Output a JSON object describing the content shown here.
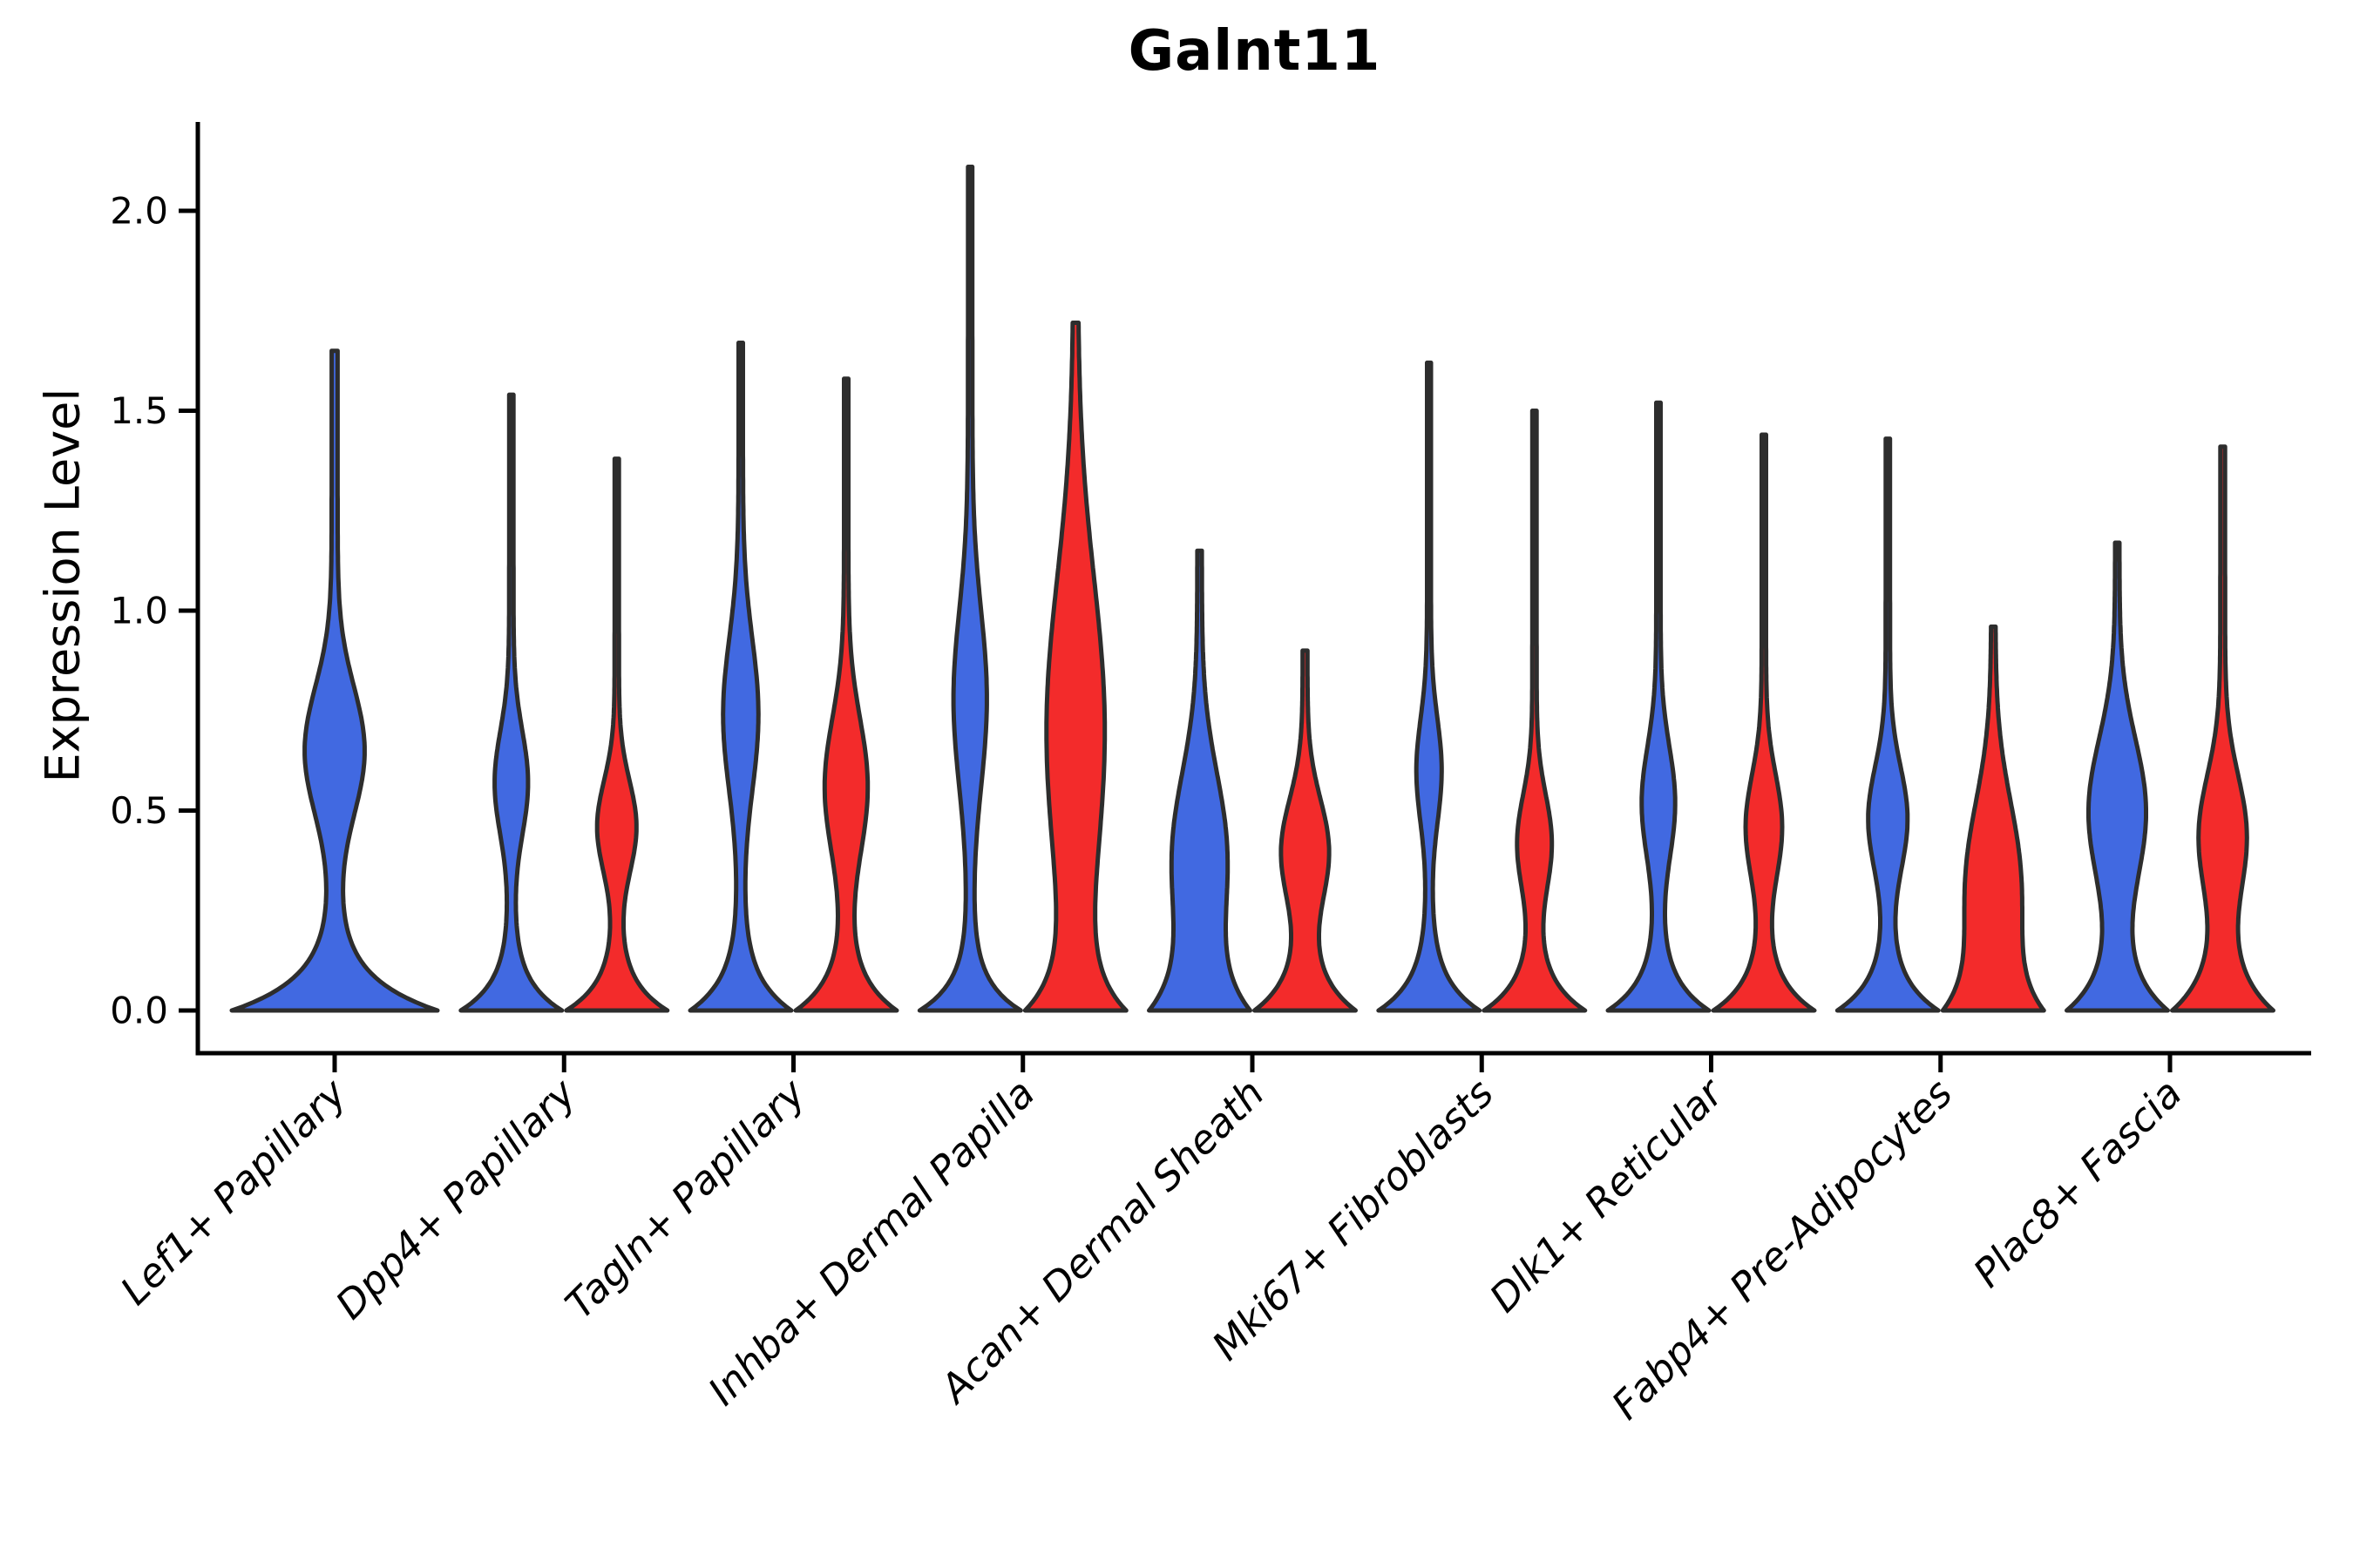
{
  "title": "Galnt11",
  "ylabel": "Expression Level",
  "chart_data": {
    "type": "violin",
    "title": "Galnt11",
    "xlabel": "",
    "ylabel": "Expression Level",
    "yticks": [
      0.0,
      0.5,
      1.0,
      1.5,
      2.0
    ],
    "ytick_labels": [
      "0.0",
      "0.5",
      "1.0",
      "1.5",
      "2.0"
    ],
    "ylim_display": [
      -0.11,
      2.22
    ],
    "grid": false,
    "legend": "none",
    "background": "#ffffff",
    "edge_color": "#2d2d2d",
    "series": [
      {
        "name": "condition-blue",
        "color": "#4169e1"
      },
      {
        "name": "condition-red",
        "color": "#f32b2b"
      }
    ],
    "categories": [
      "Lef1+ Papillary",
      "Dpp4+ Papillary",
      "Tagln+ Papillary",
      "Inhba+ Dermal Papilla",
      "Acan+ Dermal Sheath",
      "Mki67+ Fibroblasts",
      "Dlk1+ Reticular",
      "Fabp4+ Pre-Adipocytes",
      "Plac8+ Fascia"
    ],
    "violins": [
      {
        "category": "Lef1+ Papillary",
        "cat_index": 0,
        "series": "condition-blue",
        "placement": "center",
        "max_expression": 1.65,
        "zero_mass": {
          "lambda": 0.085
        },
        "bulge": {
          "mu": 0.65,
          "amp": 0.27,
          "sigma": 0.16
        },
        "stem_w": 0.03
      },
      {
        "category": "Dpp4+ Papillary",
        "cat_index": 1,
        "series": "condition-blue",
        "placement": "left",
        "max_expression": 1.54,
        "zero_mass": {
          "lambda": 0.075
        },
        "bulge": {
          "mu": 0.57,
          "amp": 0.3,
          "sigma": 0.13
        },
        "stem_w": 0.045
      },
      {
        "category": "Dpp4+ Papillary",
        "cat_index": 1,
        "series": "condition-red",
        "placement": "right",
        "max_expression": 1.38,
        "zero_mass": {
          "lambda": 0.075
        },
        "bulge": {
          "mu": 0.46,
          "amp": 0.36,
          "sigma": 0.115
        },
        "stem_w": 0.045
      },
      {
        "category": "Tagln+ Papillary",
        "cat_index": 2,
        "series": "condition-blue",
        "placement": "left",
        "max_expression": 1.67,
        "zero_mass": {
          "lambda": 0.085
        },
        "bulge": {
          "mu": 0.74,
          "amp": 0.32,
          "sigma": 0.19
        },
        "stem_w": 0.045
      },
      {
        "category": "Tagln+ Papillary",
        "cat_index": 2,
        "series": "condition-red",
        "placement": "right",
        "max_expression": 1.58,
        "zero_mass": {
          "lambda": 0.085
        },
        "bulge": {
          "mu": 0.56,
          "amp": 0.4,
          "sigma": 0.17
        },
        "stem_w": 0.045
      },
      {
        "category": "Inhba+ Dermal Papilla",
        "cat_index": 3,
        "series": "condition-blue",
        "placement": "left",
        "max_expression": 2.11,
        "zero_mass": {
          "lambda": 0.075
        },
        "bulge": {
          "mu": 0.78,
          "amp": 0.3,
          "sigma": 0.22
        },
        "stem_w": 0.045
      },
      {
        "category": "Inhba+ Dermal Papilla",
        "cat_index": 3,
        "series": "condition-red",
        "placement": "right",
        "max_expression": 1.72,
        "zero_mass": {
          "lambda": 0.105
        },
        "bulge": {
          "mu": 0.7,
          "amp": 0.62,
          "sigma": 0.38
        },
        "stem_w": 0.05
      },
      {
        "category": "Acan+ Dermal Sheath",
        "cat_index": 4,
        "series": "condition-blue",
        "placement": "left",
        "max_expression": 1.15,
        "zero_mass": {
          "lambda": 0.13
        },
        "bulge": {
          "mu": 0.4,
          "amp": 0.52,
          "sigma": 0.2
        },
        "stem_w": 0.05
      },
      {
        "category": "Acan+ Dermal Sheath",
        "cat_index": 4,
        "series": "condition-red",
        "placement": "right",
        "max_expression": 0.9,
        "zero_mass": {
          "lambda": 0.09
        },
        "bulge": {
          "mu": 0.4,
          "amp": 0.44,
          "sigma": 0.13
        },
        "stem_w": 0.05
      },
      {
        "category": "Mki67+ Fibroblasts",
        "cat_index": 5,
        "series": "condition-blue",
        "placement": "left",
        "max_expression": 1.62,
        "zero_mass": {
          "lambda": 0.08
        },
        "bulge": {
          "mu": 0.6,
          "amp": 0.22,
          "sigma": 0.13
        },
        "stem_w": 0.04
      },
      {
        "category": "Mki67+ Fibroblasts",
        "cat_index": 5,
        "series": "condition-red",
        "placement": "right",
        "max_expression": 1.5,
        "zero_mass": {
          "lambda": 0.08
        },
        "bulge": {
          "mu": 0.42,
          "amp": 0.31,
          "sigma": 0.12
        },
        "stem_w": 0.045
      },
      {
        "category": "Dlk1+ Reticular",
        "cat_index": 6,
        "series": "condition-blue",
        "placement": "left",
        "max_expression": 1.52,
        "zero_mass": {
          "lambda": 0.08
        },
        "bulge": {
          "mu": 0.52,
          "amp": 0.3,
          "sigma": 0.14
        },
        "stem_w": 0.045
      },
      {
        "category": "Dlk1+ Reticular",
        "cat_index": 6,
        "series": "condition-red",
        "placement": "right",
        "max_expression": 1.44,
        "zero_mass": {
          "lambda": 0.08
        },
        "bulge": {
          "mu": 0.46,
          "amp": 0.33,
          "sigma": 0.13
        },
        "stem_w": 0.045
      },
      {
        "category": "Fabp4+ Pre-Adipocytes",
        "cat_index": 7,
        "series": "condition-blue",
        "placement": "left",
        "max_expression": 1.43,
        "zero_mass": {
          "lambda": 0.08
        },
        "bulge": {
          "mu": 0.48,
          "amp": 0.36,
          "sigma": 0.13
        },
        "stem_w": 0.045
      },
      {
        "category": "Fabp4+ Pre-Adipocytes",
        "cat_index": 7,
        "series": "condition-red",
        "placement": "right",
        "max_expression": 0.96,
        "zero_mass": {
          "lambda": 0.12
        },
        "bulge": {
          "mu": 0.33,
          "amp": 0.55,
          "sigma": 0.2
        },
        "stem_w": 0.05
      },
      {
        "category": "Plac8+ Fascia",
        "cat_index": 8,
        "series": "condition-blue",
        "placement": "left",
        "max_expression": 1.17,
        "zero_mass": {
          "lambda": 0.1
        },
        "bulge": {
          "mu": 0.5,
          "amp": 0.55,
          "sigma": 0.18
        },
        "stem_w": 0.045
      },
      {
        "category": "Plac8+ Fascia",
        "cat_index": 8,
        "series": "condition-red",
        "placement": "right",
        "max_expression": 1.41,
        "zero_mass": {
          "lambda": 0.105
        },
        "bulge": {
          "mu": 0.44,
          "amp": 0.44,
          "sigma": 0.15
        },
        "stem_w": 0.05
      }
    ]
  }
}
